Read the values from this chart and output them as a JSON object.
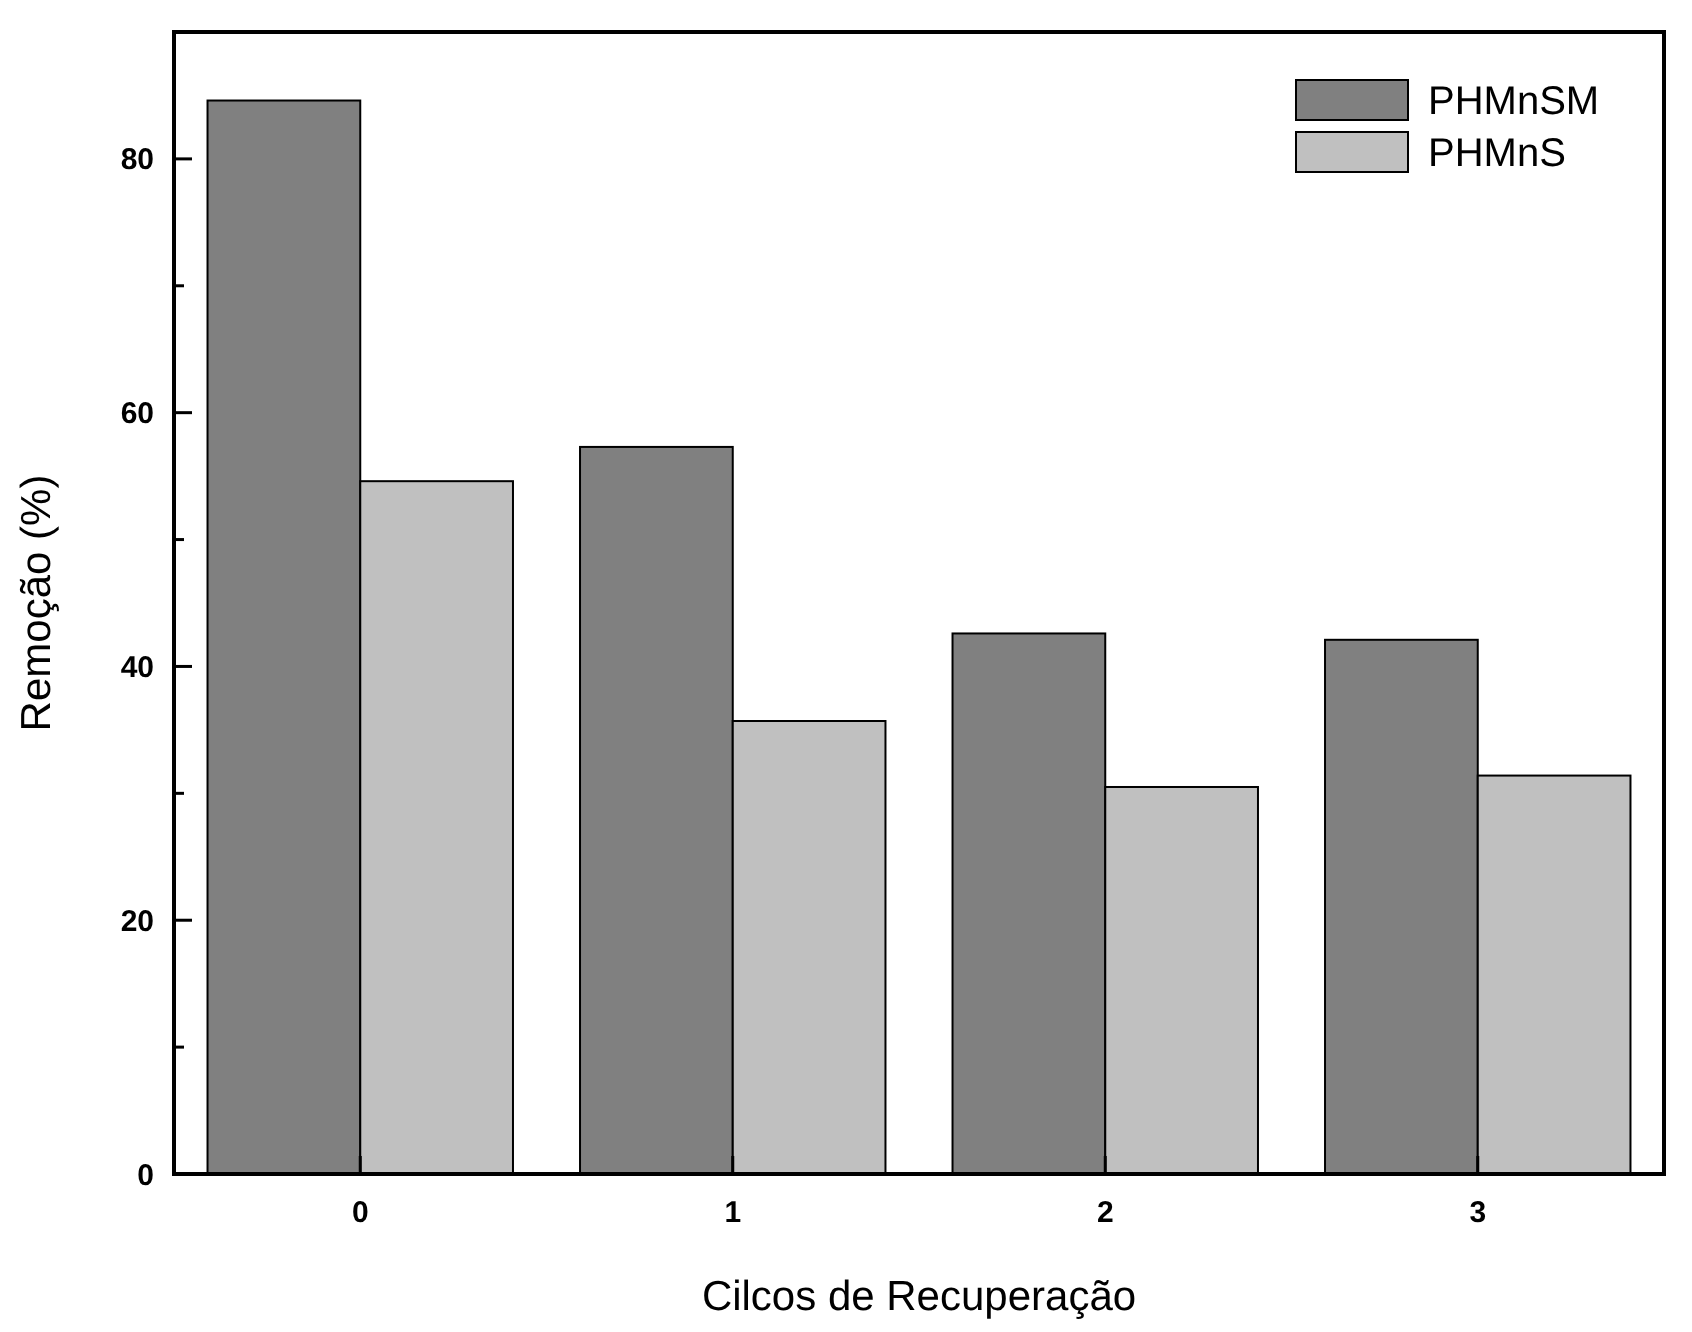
{
  "chart_data": {
    "type": "bar",
    "xlabel": "Cilcos de Recuperação",
    "ylabel": "Remoção (%)",
    "categories": [
      "0",
      "1",
      "2",
      "3"
    ],
    "series": [
      {
        "name": "PHMnSM",
        "color": "#808080",
        "values": [
          84.6,
          57.3,
          42.6,
          42.1
        ]
      },
      {
        "name": "PHMnS",
        "color": "#c0c0c0",
        "values": [
          54.6,
          35.7,
          30.5,
          31.4
        ]
      }
    ],
    "ylim": [
      0,
      90
    ],
    "yticks": [
      0,
      {
        "value": 10,
        "label": null
      },
      20,
      {
        "value": 30,
        "label": null
      },
      40,
      {
        "value": 50,
        "label": null
      },
      60,
      {
        "value": 70,
        "label": null
      },
      80
    ],
    "grid": false,
    "legend": "top right"
  }
}
